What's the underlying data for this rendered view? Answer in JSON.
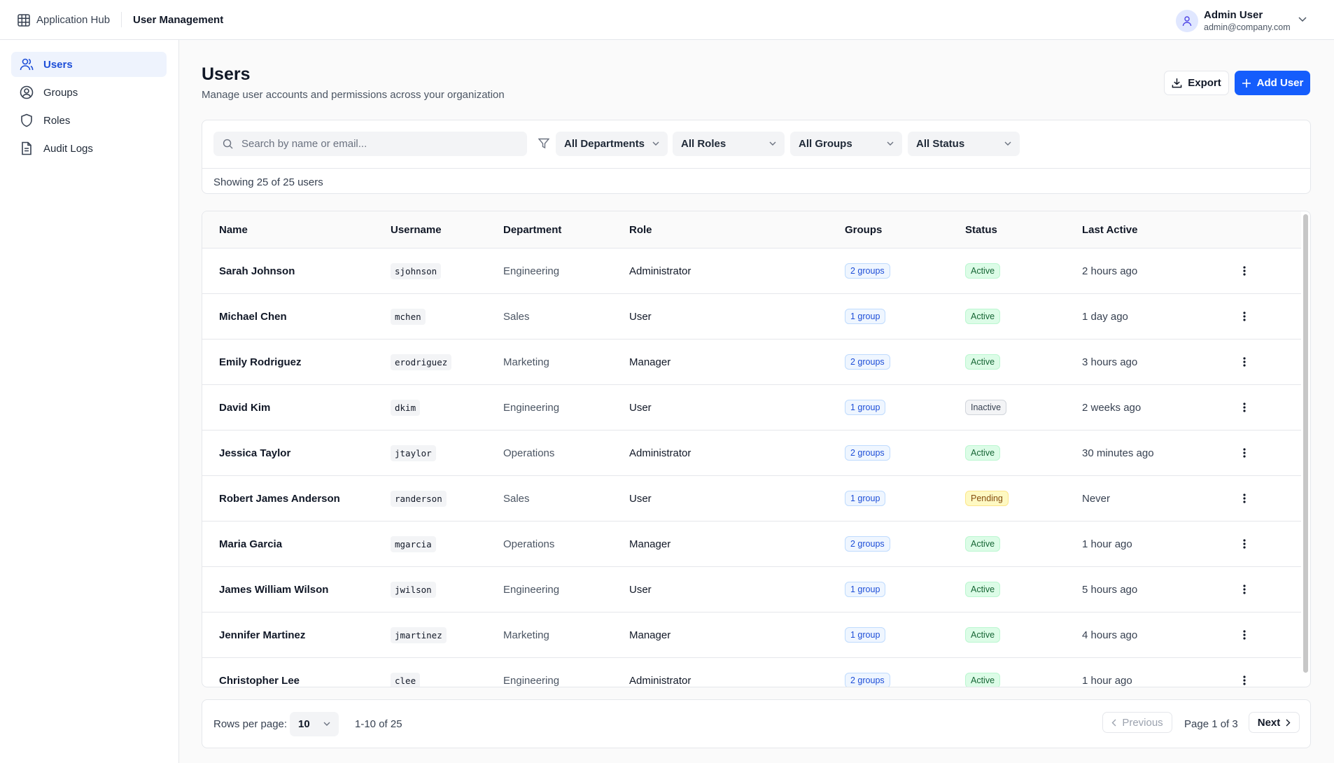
{
  "header": {
    "app_name": "Application Hub",
    "section": "User Management",
    "user_name": "Admin User",
    "user_email": "admin@company.com"
  },
  "sidebar": [
    "Users",
    "Groups",
    "Roles",
    "Audit Logs"
  ],
  "page": {
    "title": "Users",
    "subtitle": "Manage user accounts and permissions across your organization",
    "export": "Export",
    "add_user": "Add User"
  },
  "filters": {
    "search_placeholder": "Search by name or email...",
    "dropdowns": [
      "All Departments",
      "All Roles",
      "All Groups",
      "All Status"
    ],
    "summary": "Showing 25 of 25 users"
  },
  "table": {
    "columns": [
      "Name",
      "Username",
      "Department",
      "Role",
      "Groups",
      "Status",
      "Last Active"
    ],
    "rows": [
      [
        "Sarah Johnson",
        "sjohnson",
        "Engineering",
        "Administrator",
        "2 groups",
        "Active",
        "2 hours ago"
      ],
      [
        "Michael Chen",
        "mchen",
        "Sales",
        "User",
        "1 group",
        "Active",
        "1 day ago"
      ],
      [
        "Emily Rodriguez",
        "erodriguez",
        "Marketing",
        "Manager",
        "2 groups",
        "Active",
        "3 hours ago"
      ],
      [
        "David Kim",
        "dkim",
        "Engineering",
        "User",
        "1 group",
        "Inactive",
        "2 weeks ago"
      ],
      [
        "Jessica Taylor",
        "jtaylor",
        "Operations",
        "Administrator",
        "2 groups",
        "Active",
        "30 minutes ago"
      ],
      [
        "Robert James Anderson",
        "randerson",
        "Sales",
        "User",
        "1 group",
        "Pending",
        "Never"
      ],
      [
        "Maria Garcia",
        "mgarcia",
        "Operations",
        "Manager",
        "2 groups",
        "Active",
        "1 hour ago"
      ],
      [
        "James William Wilson",
        "jwilson",
        "Engineering",
        "User",
        "1 group",
        "Active",
        "5 hours ago"
      ],
      [
        "Jennifer Martinez",
        "jmartinez",
        "Marketing",
        "Manager",
        "1 group",
        "Active",
        "4 hours ago"
      ],
      [
        "Christopher Lee",
        "clee",
        "Engineering",
        "Administrator",
        "2 groups",
        "Active",
        "1 hour ago"
      ]
    ]
  },
  "pagination": {
    "rows_per_page_label": "Rows per page:",
    "rows_per_page": 10,
    "range": "1-10 of 25",
    "previous": "Previous",
    "page": "Page 1 of 3",
    "next": "Next"
  }
}
